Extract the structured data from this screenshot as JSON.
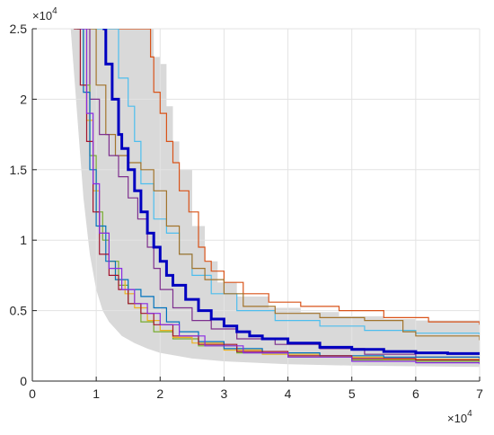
{
  "chart_data": {
    "type": "line",
    "title": "",
    "xlabel": "",
    "ylabel": "",
    "xlim": [
      0,
      70000
    ],
    "ylim": [
      0,
      25000
    ],
    "x_ticks": [
      0,
      10000,
      20000,
      30000,
      40000,
      50000,
      60000,
      70000
    ],
    "x_tick_labels": [
      "0",
      "1",
      "2",
      "3",
      "4",
      "5",
      "6",
      "7"
    ],
    "y_ticks": [
      0,
      5000,
      10000,
      15000,
      20000,
      25000
    ],
    "y_tick_labels": [
      "0",
      "0.5",
      "1",
      "1.5",
      "2",
      "2.5"
    ],
    "x_exponent_label": "×10",
    "x_exponent_power": "4",
    "y_exponent_label": "×10",
    "y_exponent_power": "4",
    "grid": true,
    "legend": "none",
    "band": {
      "color": "#d9d9d9",
      "upper": [
        [
          6000,
          25000
        ],
        [
          12000,
          25000
        ],
        [
          18000,
          25000
        ],
        [
          19000,
          23000
        ],
        [
          20000,
          22500
        ],
        [
          21000,
          19500
        ],
        [
          22000,
          17000
        ],
        [
          23000,
          15000
        ],
        [
          25000,
          11000
        ],
        [
          27000,
          8500
        ],
        [
          29000,
          7000
        ],
        [
          32000,
          6000
        ],
        [
          37000,
          5200
        ],
        [
          42000,
          4900
        ],
        [
          48000,
          4600
        ],
        [
          55000,
          4400
        ],
        [
          60000,
          4300
        ],
        [
          70000,
          4200
        ]
      ],
      "lower": [
        [
          6000,
          25000
        ],
        [
          7000,
          19000
        ],
        [
          8000,
          13000
        ],
        [
          9000,
          9000
        ],
        [
          10000,
          6500
        ],
        [
          11000,
          5000
        ],
        [
          12000,
          4200
        ],
        [
          14000,
          3200
        ],
        [
          16000,
          2700
        ],
        [
          18000,
          2300
        ],
        [
          20000,
          2000
        ],
        [
          25000,
          1600
        ],
        [
          30000,
          1400
        ],
        [
          40000,
          1200
        ],
        [
          50000,
          1100
        ],
        [
          60000,
          1050
        ],
        [
          70000,
          1000
        ]
      ]
    },
    "series": [
      {
        "color": "#0000c0",
        "width": 3,
        "values": [
          [
            11000,
            25000
          ],
          [
            11500,
            22500
          ],
          [
            12500,
            20000
          ],
          [
            13500,
            17500
          ],
          [
            14000,
            16500
          ],
          [
            15000,
            15000
          ],
          [
            16000,
            13500
          ],
          [
            17000,
            12000
          ],
          [
            18000,
            10500
          ],
          [
            19000,
            9500
          ],
          [
            20000,
            8500
          ],
          [
            21000,
            7500
          ],
          [
            22000,
            6800
          ],
          [
            24000,
            5800
          ],
          [
            26000,
            5000
          ],
          [
            28000,
            4400
          ],
          [
            30000,
            3900
          ],
          [
            32000,
            3500
          ],
          [
            34000,
            3200
          ],
          [
            36000,
            3000
          ],
          [
            40000,
            2700
          ],
          [
            45000,
            2400
          ],
          [
            50000,
            2250
          ],
          [
            55000,
            2100
          ],
          [
            60000,
            2000
          ],
          [
            65000,
            1950
          ],
          [
            70000,
            1900
          ]
        ]
      },
      {
        "color": "#d95319",
        "width": 1.2,
        "values": [
          [
            12000,
            25000
          ],
          [
            18000,
            25000
          ],
          [
            18500,
            23000
          ],
          [
            19000,
            20500
          ],
          [
            20000,
            19000
          ],
          [
            21000,
            17000
          ],
          [
            22000,
            15500
          ],
          [
            23000,
            13500
          ],
          [
            24500,
            12000
          ],
          [
            26000,
            9500
          ],
          [
            27000,
            8500
          ],
          [
            28000,
            7800
          ],
          [
            30000,
            7000
          ],
          [
            33000,
            6200
          ],
          [
            37000,
            5600
          ],
          [
            42000,
            5300
          ],
          [
            48000,
            5000
          ],
          [
            55000,
            4500
          ],
          [
            62000,
            4200
          ],
          [
            70000,
            4000
          ]
        ]
      },
      {
        "color": "#4dbeee",
        "width": 1.2,
        "values": [
          [
            9500,
            25000
          ],
          [
            13000,
            25000
          ],
          [
            13500,
            21500
          ],
          [
            15000,
            19500
          ],
          [
            16000,
            17000
          ],
          [
            17000,
            14000
          ],
          [
            19000,
            11500
          ],
          [
            21000,
            10500
          ],
          [
            23000,
            9000
          ],
          [
            25000,
            7500
          ],
          [
            28000,
            6200
          ],
          [
            32000,
            5000
          ],
          [
            38000,
            4300
          ],
          [
            45000,
            3900
          ],
          [
            52000,
            3600
          ],
          [
            60000,
            3400
          ],
          [
            70000,
            3300
          ]
        ]
      },
      {
        "color": "#a2742c",
        "width": 1.2,
        "values": [
          [
            9000,
            25000
          ],
          [
            10000,
            21000
          ],
          [
            11500,
            17500
          ],
          [
            13000,
            16000
          ],
          [
            15000,
            15500
          ],
          [
            17000,
            15000
          ],
          [
            19000,
            13500
          ],
          [
            21000,
            11000
          ],
          [
            23000,
            9000
          ],
          [
            25000,
            8000
          ],
          [
            27000,
            7200
          ],
          [
            30000,
            6200
          ],
          [
            33000,
            5300
          ],
          [
            38000,
            4800
          ],
          [
            45000,
            4500
          ],
          [
            52000,
            4300
          ],
          [
            58000,
            3500
          ],
          [
            60000,
            3200
          ],
          [
            70000,
            2900
          ]
        ]
      },
      {
        "color": "#7e2f8e",
        "width": 1.2,
        "values": [
          [
            8500,
            25000
          ],
          [
            9000,
            20000
          ],
          [
            10500,
            17500
          ],
          [
            12000,
            16000
          ],
          [
            13500,
            14500
          ],
          [
            15000,
            13000
          ],
          [
            16500,
            11500
          ],
          [
            18000,
            9500
          ],
          [
            19000,
            8000
          ],
          [
            20000,
            6500
          ],
          [
            22000,
            5200
          ],
          [
            25000,
            4300
          ],
          [
            28000,
            3700
          ],
          [
            32000,
            3000
          ],
          [
            38000,
            2600
          ],
          [
            45000,
            2300
          ],
          [
            52000,
            1900
          ],
          [
            60000,
            1700
          ],
          [
            70000,
            1600
          ]
        ]
      },
      {
        "color": "#77ac30",
        "width": 1.2,
        "values": [
          [
            7000,
            25000
          ],
          [
            8000,
            21000
          ],
          [
            9000,
            16000
          ],
          [
            10000,
            12000
          ],
          [
            11000,
            10000
          ],
          [
            12000,
            8500
          ],
          [
            13500,
            6800
          ],
          [
            15000,
            5500
          ],
          [
            17000,
            4200
          ],
          [
            19000,
            3500
          ],
          [
            22000,
            3000
          ],
          [
            26000,
            2500
          ],
          [
            32000,
            2000
          ],
          [
            40000,
            1700
          ],
          [
            50000,
            1500
          ],
          [
            60000,
            1400
          ],
          [
            70000,
            1300
          ]
        ]
      },
      {
        "color": "#edb120",
        "width": 1.2,
        "values": [
          [
            7500,
            25000
          ],
          [
            8500,
            18500
          ],
          [
            9500,
            13500
          ],
          [
            10500,
            10500
          ],
          [
            12000,
            8500
          ],
          [
            13000,
            7200
          ],
          [
            14500,
            6200
          ],
          [
            16000,
            5200
          ],
          [
            18000,
            4300
          ],
          [
            20000,
            3600
          ],
          [
            22000,
            3100
          ],
          [
            25000,
            2700
          ],
          [
            30000,
            2200
          ],
          [
            36000,
            1900
          ],
          [
            45000,
            1700
          ],
          [
            55000,
            1550
          ],
          [
            70000,
            1450
          ]
        ]
      },
      {
        "color": "#0072bd",
        "width": 1.2,
        "values": [
          [
            7000,
            25000
          ],
          [
            8000,
            20500
          ],
          [
            9000,
            15000
          ],
          [
            10000,
            11000
          ],
          [
            11500,
            8500
          ],
          [
            13000,
            7200
          ],
          [
            15000,
            6500
          ],
          [
            17000,
            6000
          ],
          [
            19000,
            5200
          ],
          [
            21000,
            4200
          ],
          [
            23000,
            3500
          ],
          [
            26000,
            2800
          ],
          [
            30000,
            2300
          ],
          [
            36000,
            2000
          ],
          [
            45000,
            1800
          ],
          [
            55000,
            1700
          ],
          [
            70000,
            1600
          ]
        ]
      },
      {
        "color": "#a2142f",
        "width": 1.2,
        "values": [
          [
            6500,
            25000
          ],
          [
            7500,
            21000
          ],
          [
            8500,
            17000
          ],
          [
            9500,
            12000
          ],
          [
            10500,
            9000
          ],
          [
            12000,
            7500
          ],
          [
            13500,
            6500
          ],
          [
            15000,
            5500
          ],
          [
            17000,
            4800
          ],
          [
            19000,
            4000
          ],
          [
            22000,
            3200
          ],
          [
            26000,
            2600
          ],
          [
            32000,
            2100
          ],
          [
            40000,
            1800
          ],
          [
            50000,
            1600
          ],
          [
            60000,
            1500
          ],
          [
            70000,
            1450
          ]
        ]
      },
      {
        "color": "#8a2be2",
        "width": 1.2,
        "values": [
          [
            7500,
            25000
          ],
          [
            8500,
            19000
          ],
          [
            9500,
            14000
          ],
          [
            10500,
            10500
          ],
          [
            12000,
            8000
          ],
          [
            14000,
            6500
          ],
          [
            16000,
            5500
          ],
          [
            18000,
            4800
          ],
          [
            20000,
            4000
          ],
          [
            23000,
            3200
          ],
          [
            27000,
            2500
          ],
          [
            33000,
            2000
          ],
          [
            40000,
            1700
          ],
          [
            50000,
            1400
          ],
          [
            60000,
            1300
          ],
          [
            70000,
            1200
          ]
        ]
      }
    ]
  }
}
